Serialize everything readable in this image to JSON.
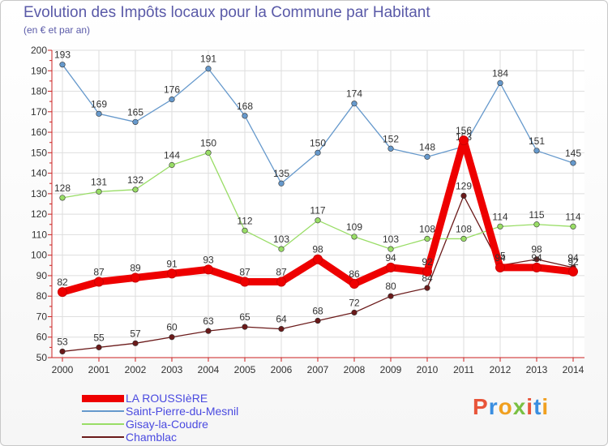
{
  "title": "Evolution des Impôts locaux pour la Commune par Habitant",
  "subtitle": "(en € et par an)",
  "brand": "Proxiti",
  "chart_data": {
    "type": "line",
    "title": "Evolution des Impôts locaux pour la Commune par Habitant",
    "ylabel": "(en € et par an)",
    "xlabel": "",
    "x": [
      "2000",
      "2001",
      "2002",
      "2003",
      "2004",
      "2005",
      "2006",
      "2007",
      "2008",
      "2009",
      "2010",
      "2011",
      "2012",
      "2013",
      "2014"
    ],
    "ylim": [
      50,
      200
    ],
    "yticks": [
      50,
      60,
      70,
      80,
      90,
      100,
      110,
      120,
      130,
      140,
      150,
      160,
      170,
      180,
      190,
      200
    ],
    "grid": true,
    "legend_position": "bottom-left",
    "series": [
      {
        "name": "Chamblac",
        "color": "#6b1a1a",
        "values": [
          53,
          55,
          57,
          60,
          63,
          65,
          64,
          68,
          72,
          80,
          84,
          129,
          95,
          98,
          94
        ]
      },
      {
        "name": "Gisay-la-Coudre",
        "color": "#99dd66",
        "values": [
          128,
          131,
          132,
          144,
          150,
          112,
          103,
          117,
          109,
          103,
          108,
          108,
          114,
          115,
          114
        ]
      },
      {
        "name": "Saint-Pierre-du-Mesnil",
        "color": "#6699cc",
        "values": [
          193,
          169,
          165,
          176,
          191,
          168,
          135,
          150,
          174,
          152,
          148,
          153,
          184,
          151,
          145
        ]
      },
      {
        "name": "LA ROUSSIèRE",
        "color": "#ee0000",
        "values": [
          82,
          87,
          89,
          91,
          93,
          87,
          87,
          98,
          86,
          94,
          92,
          156,
          94,
          94,
          92
        ]
      }
    ]
  },
  "legend": [
    {
      "name": "LA ROUSSIèRE",
      "color": "#ee0000"
    },
    {
      "name": "Saint-Pierre-du-Mesnil",
      "color": "#6699cc"
    },
    {
      "name": "Gisay-la-Coudre",
      "color": "#99dd66"
    },
    {
      "name": "Chamblac",
      "color": "#6b1a1a"
    }
  ]
}
